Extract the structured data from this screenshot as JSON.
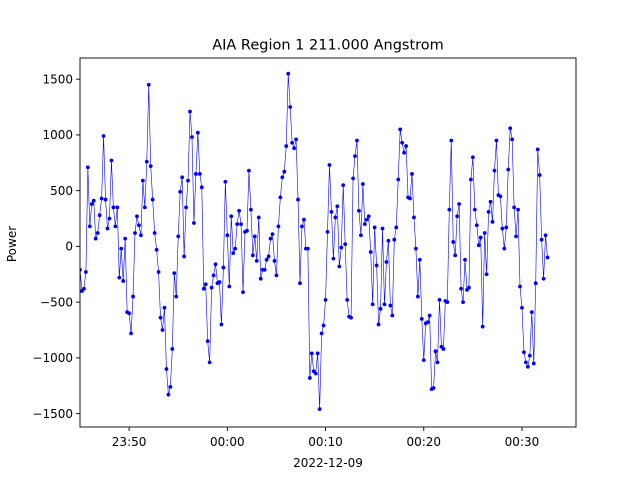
{
  "chart_data": {
    "type": "line",
    "title": "AIA Region 1 211.000 Angstrom",
    "ylabel": "Power",
    "xlabel": "2022-12-09",
    "x_unit": "minutes",
    "x_range": [
      -15.0,
      35.5
    ],
    "ylim": [
      -1620,
      1690
    ],
    "x_tick_labels": [
      "23:50",
      "00:00",
      "00:10",
      "00:20",
      "00:30"
    ],
    "x_tick_values": [
      -10,
      0,
      10,
      20,
      30
    ],
    "y_ticks": [
      -1500,
      -1000,
      -500,
      0,
      500,
      1000,
      1500
    ],
    "grid": false,
    "series": [
      {
        "color": "#0000ff",
        "marker": "circle",
        "step_minutes": 0.2,
        "start_minute": -15.0,
        "values": [
          -210,
          -400,
          -380,
          -230,
          710,
          180,
          380,
          410,
          70,
          120,
          280,
          430,
          990,
          420,
          160,
          250,
          770,
          350,
          180,
          350,
          -280,
          -20,
          -310,
          70,
          -590,
          -600,
          -780,
          -450,
          120,
          270,
          190,
          100,
          590,
          350,
          760,
          1450,
          720,
          420,
          120,
          -30,
          -230,
          -640,
          -750,
          -550,
          -1100,
          -1330,
          -1260,
          -920,
          -240,
          -450,
          90,
          490,
          620,
          -90,
          350,
          590,
          1210,
          980,
          210,
          650,
          1020,
          650,
          530,
          -380,
          -340,
          -850,
          -1040,
          -370,
          -260,
          -160,
          -330,
          -320,
          -700,
          -190,
          580,
          100,
          -360,
          270,
          -60,
          -20,
          200,
          320,
          200,
          -410,
          130,
          140,
          680,
          330,
          -80,
          90,
          -130,
          260,
          -290,
          -210,
          -210,
          -120,
          -90,
          70,
          110,
          -130,
          -260,
          180,
          440,
          620,
          670,
          900,
          1550,
          1250,
          930,
          880,
          960,
          420,
          -330,
          180,
          240,
          -20,
          -20,
          -1180,
          -960,
          -1120,
          -1140,
          -960,
          -1460,
          -780,
          -710,
          -480,
          130,
          730,
          310,
          -110,
          260,
          360,
          -180,
          -10,
          550,
          20,
          -480,
          -630,
          -640,
          610,
          810,
          950,
          320,
          100,
          560,
          200,
          240,
          270,
          -50,
          -520,
          170,
          -170,
          -700,
          -560,
          160,
          -520,
          -140,
          50,
          -530,
          -620,
          60,
          170,
          600,
          1050,
          930,
          840,
          900,
          440,
          430,
          650,
          260,
          -20,
          -450,
          -120,
          -650,
          -1020,
          -690,
          -680,
          -620,
          -1280,
          -1270,
          -940,
          -1040,
          -480,
          -900,
          -920,
          -490,
          -500,
          330,
          950,
          40,
          -80,
          270,
          380,
          -380,
          -500,
          -120,
          -390,
          -370,
          600,
          800,
          330,
          190,
          10,
          80,
          -720,
          120,
          -250,
          310,
          400,
          220,
          680,
          950,
          460,
          450,
          160,
          -20,
          170,
          690,
          1060,
          960,
          350,
          90,
          330,
          -360,
          -550,
          -950,
          -1040,
          -1080,
          -980,
          -590,
          -1050,
          -330,
          870,
          640,
          60,
          -290,
          100,
          -100
        ]
      }
    ]
  }
}
